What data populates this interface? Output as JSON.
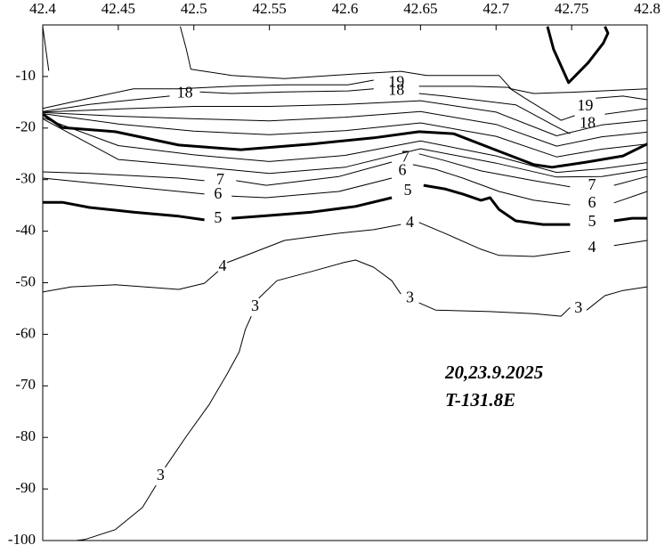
{
  "chart_data": {
    "type": "contour",
    "annotations": [
      "20,23.9.2025",
      "T-131.8E"
    ],
    "xlim": [
      42.4,
      42.8
    ],
    "xticks": [
      42.4,
      42.45,
      42.5,
      42.55,
      42.6,
      42.65,
      42.7,
      42.75,
      42.8
    ],
    "ylim": [
      -100,
      0
    ],
    "yticks": [
      -10,
      -20,
      -30,
      -40,
      -50,
      -60,
      -70,
      -80,
      -90,
      -100
    ],
    "color": "#000000",
    "contours": [
      {
        "level": 3,
        "bold": false,
        "x": [
          42.422,
          42.428,
          42.448,
          42.466,
          42.475,
          null,
          42.481,
          42.495,
          42.51,
          42.522,
          42.53,
          42.534,
          42.538,
          null,
          42.543,
          42.555,
          42.578,
          42.599,
          42.607,
          42.619,
          42.631,
          42.637,
          null,
          42.649,
          42.66,
          42.696,
          42.725,
          42.743,
          42.749,
          null,
          42.76,
          42.772,
          42.784,
          42.8
        ],
        "y": [
          -100,
          -99.8,
          -97.9,
          -93.6,
          -89.3,
          null,
          -85.8,
          -79.8,
          -73.7,
          -67.7,
          -63.4,
          -59.1,
          -56.5,
          null,
          -53.0,
          -49.6,
          -47.8,
          -46.1,
          -45.6,
          -47.0,
          -49.6,
          -52.2,
          null,
          -53.9,
          -55.3,
          -55.6,
          -56.0,
          -56.5,
          -54.8,
          null,
          -55.3,
          -52.5,
          -51.5,
          -50.8
        ]
      },
      {
        "level": 4,
        "bold": false,
        "x": [
          42.4,
          42.419,
          42.448,
          42.49,
          42.507,
          42.516,
          null,
          42.522,
          42.537,
          42.56,
          42.596,
          42.619,
          42.637,
          null,
          42.649,
          42.666,
          42.69,
          42.702,
          42.725,
          42.749,
          null,
          42.778,
          42.8
        ],
        "y": [
          -51.8,
          -50.8,
          -50.4,
          -51.3,
          -50.1,
          -47.8,
          null,
          -46.1,
          -44.4,
          -41.8,
          -40.4,
          -39.7,
          -38.7,
          null,
          -38.3,
          -40.4,
          -43.5,
          -44.7,
          -44.9,
          -43.9,
          null,
          -42.8,
          -41.8
        ]
      },
      {
        "level": 5,
        "bold": true,
        "x": [
          42.4,
          42.413,
          42.431,
          42.46,
          42.49,
          42.507,
          null,
          42.525,
          42.548,
          42.578,
          42.607,
          42.631,
          null,
          42.652,
          42.666,
          42.678,
          42.69,
          42.696,
          42.702,
          42.713,
          42.731,
          42.749,
          null,
          42.778,
          42.79,
          42.8
        ],
        "y": [
          -34.4,
          -34.4,
          -35.4,
          -36.3,
          -37.1,
          -37.8,
          null,
          -37.5,
          -37.0,
          -36.3,
          -35.2,
          -33.5,
          null,
          -31.1,
          -31.8,
          -32.8,
          -34.0,
          -33.5,
          -35.8,
          -38.0,
          -38.7,
          -38.7,
          null,
          -38.0,
          -37.5,
          -37.5
        ]
      },
      {
        "level": 6,
        "bold": false,
        "x": [
          42.4,
          42.431,
          42.49,
          42.507,
          null,
          42.525,
          42.548,
          42.596,
          42.631,
          null,
          42.645,
          42.66,
          42.678,
          42.702,
          42.725,
          42.749,
          null,
          42.778,
          42.8
        ],
        "y": [
          -29.7,
          -30.6,
          -32.3,
          -32.8,
          null,
          -33.2,
          -33.5,
          -32.3,
          -29.7,
          null,
          -27.1,
          -28.0,
          -29.7,
          -32.3,
          -34.0,
          -34.9,
          null,
          -34.5,
          -32.3
        ]
      },
      {
        "level": 7,
        "bold": false,
        "x": [
          42.4,
          42.431,
          42.49,
          42.507,
          null,
          42.528,
          42.548,
          42.596,
          42.631,
          null,
          42.649,
          42.666,
          42.69,
          42.725,
          42.749,
          null,
          42.778,
          42.8
        ],
        "y": [
          -28.5,
          -28.8,
          -29.7,
          -30.2,
          null,
          -30.2,
          -31.1,
          -29.4,
          -26.6,
          null,
          -25.0,
          -26.3,
          -28.3,
          -30.2,
          -31.4,
          null,
          -31.1,
          -29.4
        ]
      },
      {
        "bold": true,
        "x": [
          42.4,
          42.413,
          42.448,
          42.49,
          42.531,
          42.578,
          42.619,
          42.649,
          42.672,
          42.702,
          42.725,
          42.737,
          42.76,
          42.784,
          42.8
        ],
        "y": [
          -17.3,
          -19.9,
          -20.7,
          -23.3,
          -24.2,
          -23.1,
          -21.9,
          -20.7,
          -21.1,
          -24.5,
          -27.1,
          -27.6,
          -26.6,
          -25.4,
          -23.1
        ]
      },
      {
        "bold": false,
        "x": [
          42.4,
          42.45,
          42.5,
          42.55,
          42.6,
          42.65,
          42.7,
          42.74,
          42.77,
          42.8
        ],
        "y": [
          -18.0,
          -23.4,
          -25.2,
          -26.5,
          -25.3,
          -22.5,
          -25.4,
          -28.6,
          -27.9,
          -26.7
        ]
      },
      {
        "bold": false,
        "x": [
          42.4,
          42.45,
          42.5,
          42.55,
          42.6,
          42.65,
          42.7,
          42.74,
          42.77,
          42.8
        ],
        "y": [
          -18.2,
          -26.1,
          -27.4,
          -28.8,
          -27.6,
          -24.0,
          -26.8,
          -29.5,
          -29.4,
          -28.0
        ]
      },
      {
        "bold": false,
        "x": [
          42.4,
          42.45,
          42.5,
          42.55,
          42.6,
          42.65,
          42.7,
          42.74,
          42.77,
          42.8
        ],
        "y": [
          -16.9,
          -16.3,
          -15.8,
          -15.8,
          -15.4,
          -14.7,
          -16.9,
          -21.5,
          -19.4,
          -18.5
        ]
      },
      {
        "bold": false,
        "x": [
          42.4,
          42.45,
          42.5,
          42.55,
          42.6,
          42.65,
          42.7,
          42.74,
          42.77,
          42.8
        ],
        "y": [
          -17.0,
          -17.7,
          -18.2,
          -18.6,
          -17.9,
          -16.8,
          -19.3,
          -23.5,
          -21.7,
          -20.8
        ]
      },
      {
        "bold": false,
        "x": [
          42.4,
          42.45,
          42.5,
          42.55,
          42.6,
          42.65,
          42.7,
          42.74,
          42.77,
          42.8
        ],
        "y": [
          -17.2,
          -19.2,
          -20.6,
          -21.3,
          -20.5,
          -19.0,
          -21.6,
          -25.6,
          -24.1,
          -23.1
        ]
      },
      {
        "level": 18,
        "bold": false,
        "x": [
          42.4,
          42.431,
          42.454,
          42.484,
          null,
          42.504,
          42.525,
          42.56,
          42.602,
          42.619,
          null,
          42.649,
          42.666,
          42.713,
          42.737,
          42.749,
          null,
          42.772,
          42.8
        ],
        "y": [
          -16.8,
          -15.4,
          -14.7,
          -13.8,
          null,
          -13.0,
          -13.3,
          -13.0,
          -12.8,
          -12.4,
          null,
          -13.3,
          -13.8,
          -15.5,
          -19.3,
          -21.1,
          null,
          -17.3,
          -16.2
        ]
      },
      {
        "level": 19,
        "bold": false,
        "x": [
          42.4,
          42.431,
          42.46,
          42.49,
          42.525,
          42.56,
          42.602,
          42.619,
          null,
          42.649,
          42.684,
          42.708,
          42.719,
          42.743,
          42.752,
          null,
          42.766,
          42.784,
          42.8
        ],
        "y": [
          -16.2,
          -14.2,
          -12.4,
          -12.4,
          -11.9,
          -11.6,
          -11.6,
          -10.7,
          null,
          -11.9,
          -11.9,
          -12.1,
          -14.2,
          -18.5,
          -17.6,
          null,
          -14.2,
          -13.8,
          -14.5
        ]
      },
      {
        "bold": false,
        "x": [
          42.491,
          42.495,
          42.498,
          42.525,
          42.56,
          42.607,
          42.637,
          42.654,
          42.702,
          42.71,
          42.725,
          42.755,
          42.8
        ],
        "y": [
          -0.3,
          -4.7,
          -8.6,
          -9.8,
          -10.4,
          -9.5,
          -9.0,
          -9.8,
          -9.8,
          -12.4,
          -13.3,
          -13.0,
          -12.4
        ]
      },
      {
        "bold": false,
        "x": [
          42.4,
          42.404
        ],
        "y": [
          -0.3,
          -8.9
        ]
      },
      {
        "bold": true,
        "x": [
          42.734,
          42.738,
          42.748,
          42.761,
          42.771,
          42.774,
          42.772
        ],
        "y": [
          -0.3,
          -4.7,
          -11.2,
          -7.3,
          -3.5,
          -1.6,
          -0.3
        ]
      }
    ]
  }
}
